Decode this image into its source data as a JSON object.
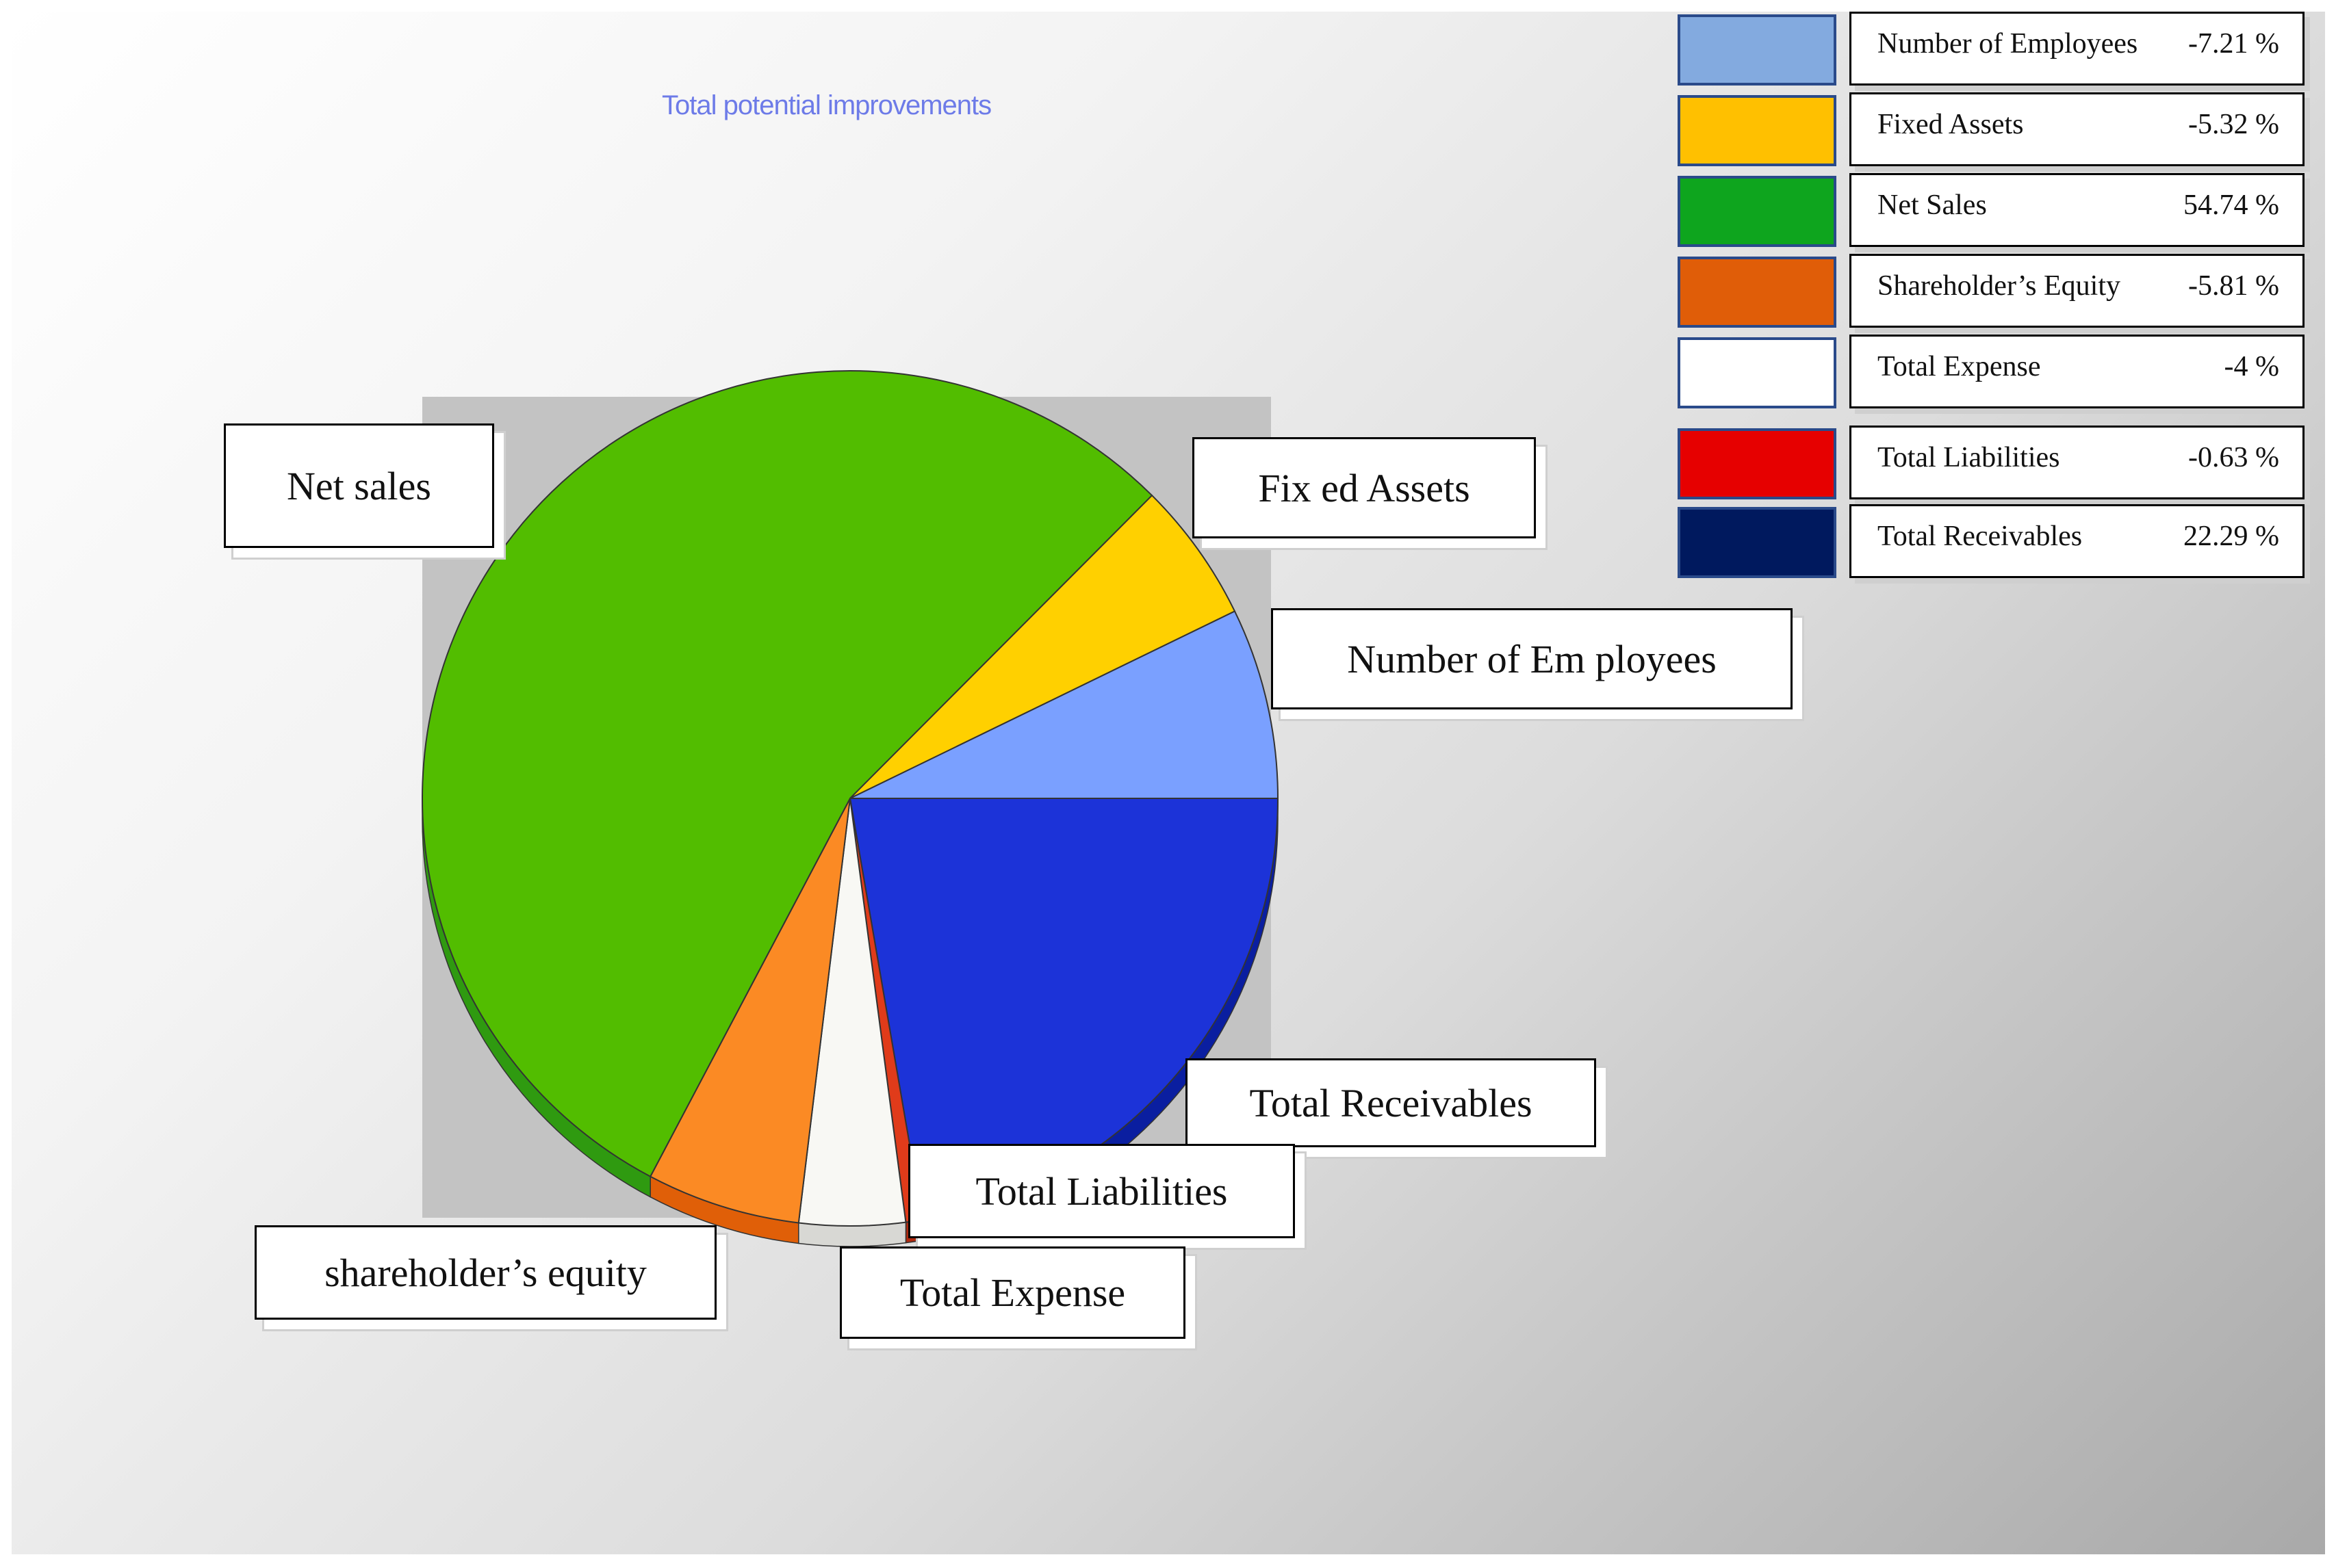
{
  "chart_data": {
    "type": "pie",
    "title": "Total potential improvements",
    "slices": [
      {
        "key": "receivables",
        "label": "Total Receivables",
        "value": 22.29,
        "color": "#1c33d8",
        "side_color": "#0a1ea0"
      },
      {
        "key": "liabilities",
        "label": "Total Liabilities",
        "value": 0.63,
        "color": "#e03b1a",
        "side_color": "#b02a10"
      },
      {
        "key": "expense",
        "label": "Total Expense",
        "value": 4,
        "color": "#f8f8f4",
        "side_color": "#d8d8d4"
      },
      {
        "key": "equity",
        "label": "shareholder’s equity",
        "value": 5.81,
        "color": "#fb8a24",
        "side_color": "#e05f08"
      },
      {
        "key": "netsales",
        "label": "Net sales",
        "value": 54.74,
        "color": "#52bd00",
        "side_color": "#2f9a10"
      },
      {
        "key": "fixed",
        "label": "Fix ed Assets",
        "value": 5.32,
        "color": "#ffd000",
        "side_color": "#d0a800"
      },
      {
        "key": "employees",
        "label": "Number of Em ployees",
        "value": 7.21,
        "color": "#7aa0ff",
        "side_color": "#5a7fe0"
      }
    ],
    "legend": [
      {
        "label": "Number of Employees",
        "value": "-7.21 %",
        "color": "#83aadf"
      },
      {
        "label": "Fixed Assets",
        "value": "-5.32 %",
        "color": "#ffc000"
      },
      {
        "label": "Net Sales",
        "value": "54.74 %",
        "color": "#0ea51e"
      },
      {
        "label": "Shareholder’s Equity",
        "value": "-5.81 %",
        "color": "#e05d08"
      },
      {
        "label": "Total Expense",
        "value": "-4 %",
        "color": "#ffffff"
      },
      {
        "label": "Total Liabilities",
        "value": "-0.63 %",
        "color": "#e60000"
      },
      {
        "label": "Total Receivables",
        "value": "22.29 %",
        "color": "#00195e"
      }
    ],
    "legend_placement": "top-right"
  }
}
